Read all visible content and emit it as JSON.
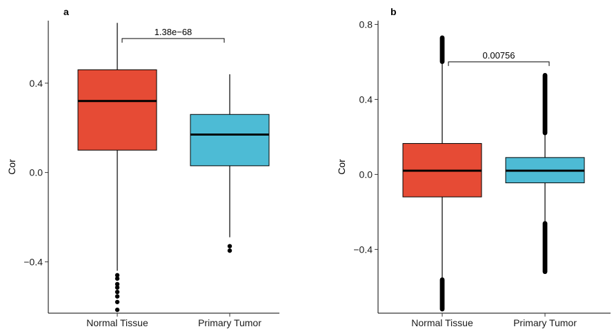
{
  "chart_data": [
    {
      "type": "box",
      "panel_label": "a",
      "ylabel": "Cor",
      "xlabel": "",
      "ylim": [
        -0.63,
        0.68
      ],
      "yticks": [
        -0.4,
        0.0,
        0.4
      ],
      "ytick_labels": [
        "−0.4",
        "0.0",
        "0.4"
      ],
      "categories": [
        "Normal Tissue",
        "Primary Tumor"
      ],
      "boxes": [
        {
          "category": "Normal Tissue",
          "color": "#e64b35",
          "whisker_low": -0.44,
          "q1": 0.1,
          "median": 0.32,
          "q3": 0.46,
          "whisker_high": 0.67,
          "outliers": [
            -0.46,
            -0.475,
            -0.5,
            -0.515,
            -0.535,
            -0.555,
            -0.58,
            -0.615
          ]
        },
        {
          "category": "Primary Tumor",
          "color": "#4dbbd5",
          "whisker_low": -0.29,
          "q1": 0.03,
          "median": 0.17,
          "q3": 0.26,
          "whisker_high": 0.44,
          "outliers": [
            -0.33,
            -0.35
          ]
        }
      ],
      "comparison": {
        "label": "1.38e−68",
        "y": 0.6
      },
      "grid": false
    },
    {
      "type": "box",
      "panel_label": "b",
      "ylabel": "Cor",
      "xlabel": "",
      "ylim": [
        -0.74,
        0.82
      ],
      "yticks": [
        -0.4,
        0.0,
        0.4,
        0.8
      ],
      "ytick_labels": [
        "−0.4",
        "0.0",
        "0.4",
        "0.8"
      ],
      "categories": [
        "Normal Tissue",
        "Primary Tumor"
      ],
      "boxes": [
        {
          "category": "Normal Tissue",
          "color": "#e64b35",
          "whisker_low": -0.55,
          "q1": -0.12,
          "median": 0.02,
          "q3": 0.165,
          "whisker_high": 0.6,
          "outlier_ranges": [
            [
              0.6,
              0.73
            ],
            [
              -0.72,
              -0.56
            ]
          ]
        },
        {
          "category": "Primary Tumor",
          "color": "#4dbbd5",
          "whisker_low": -0.25,
          "q1": -0.045,
          "median": 0.02,
          "q3": 0.09,
          "whisker_high": 0.22,
          "outlier_ranges": [
            [
              0.22,
              0.53
            ],
            [
              -0.52,
              -0.26
            ]
          ]
        }
      ],
      "comparison": {
        "label": "0.00756",
        "y": 0.6
      },
      "grid": false
    }
  ]
}
